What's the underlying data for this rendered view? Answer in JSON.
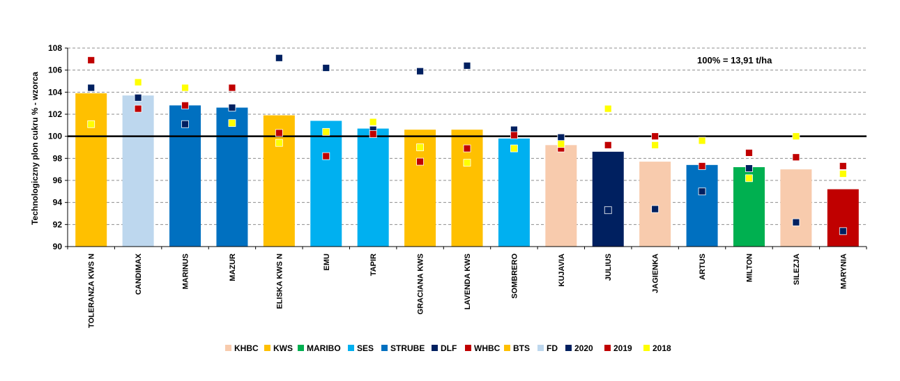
{
  "chart_data": {
    "type": "bar",
    "title": "",
    "xlabel": "",
    "ylabel": "Technologiczny  plon cukru % - wzorca",
    "ylim": [
      90,
      108
    ],
    "yticks": [
      90,
      92,
      94,
      96,
      98,
      100,
      102,
      104,
      106,
      108
    ],
    "grid": true,
    "reference_line": 100,
    "annotation": "100% = 13,91 t/ha",
    "legend_position": "bottom",
    "categories": [
      "TOLERANZA KWS N",
      "CANDIMAX",
      "MARINUS",
      "MAZUR",
      "ELISKA KWS N",
      "EMU",
      "TAPIR",
      "GRACIANA KWS",
      "LAVENDA KWS",
      "SOMBRERO",
      "KUJAVIA",
      "JULIUS",
      "JAGIENKA",
      "ARTUS",
      "MILTON",
      "SILEZJA",
      "MARYNIA"
    ],
    "bar_values": [
      103.9,
      103.7,
      102.8,
      102.6,
      101.9,
      101.4,
      100.7,
      100.6,
      100.6,
      99.8,
      99.2,
      98.6,
      97.7,
      97.4,
      97.2,
      97.0,
      95.2
    ],
    "bar_groups": [
      "KWS",
      "FD",
      "STRUBE",
      "STRUBE",
      "KWS",
      "SES",
      "SES",
      "KWS",
      "KWS",
      "SES",
      "KHBC",
      "DLF",
      "KHBC",
      "STRUBE",
      "MARIBO",
      "KHBC",
      "WHBC"
    ],
    "groups": [
      {
        "name": "KHBC",
        "color": "#F8CBAD"
      },
      {
        "name": "KWS",
        "color": "#FFC000"
      },
      {
        "name": "MARIBO",
        "color": "#00B050"
      },
      {
        "name": "SES",
        "color": "#00B0F0"
      },
      {
        "name": "STRUBE",
        "color": "#0070C0"
      },
      {
        "name": "DLF",
        "color": "#002060"
      },
      {
        "name": "WHBC",
        "color": "#C00000"
      },
      {
        "name": "BTS",
        "color": "#FFC000"
      },
      {
        "name": "FD",
        "color": "#BDD7EE"
      }
    ],
    "series": [
      {
        "name": "2020",
        "color": "#002060",
        "values": [
          104.4,
          103.5,
          101.1,
          102.6,
          107.1,
          106.2,
          100.6,
          105.9,
          106.4,
          100.6,
          99.9,
          93.3,
          93.4,
          95.0,
          97.1,
          92.2,
          91.4
        ]
      },
      {
        "name": "2019",
        "color": "#C00000",
        "values": [
          106.9,
          102.5,
          102.8,
          104.4,
          100.3,
          98.2,
          100.2,
          97.7,
          98.9,
          100.1,
          98.9,
          99.2,
          100.0,
          97.3,
          98.5,
          98.1,
          97.3
        ]
      },
      {
        "name": "2018",
        "color": "#FFFF00",
        "values": [
          101.1,
          104.9,
          104.4,
          101.2,
          99.4,
          100.4,
          101.3,
          99.0,
          97.6,
          98.9,
          99.3,
          102.5,
          99.2,
          99.6,
          96.2,
          100.0,
          96.6
        ]
      }
    ]
  }
}
